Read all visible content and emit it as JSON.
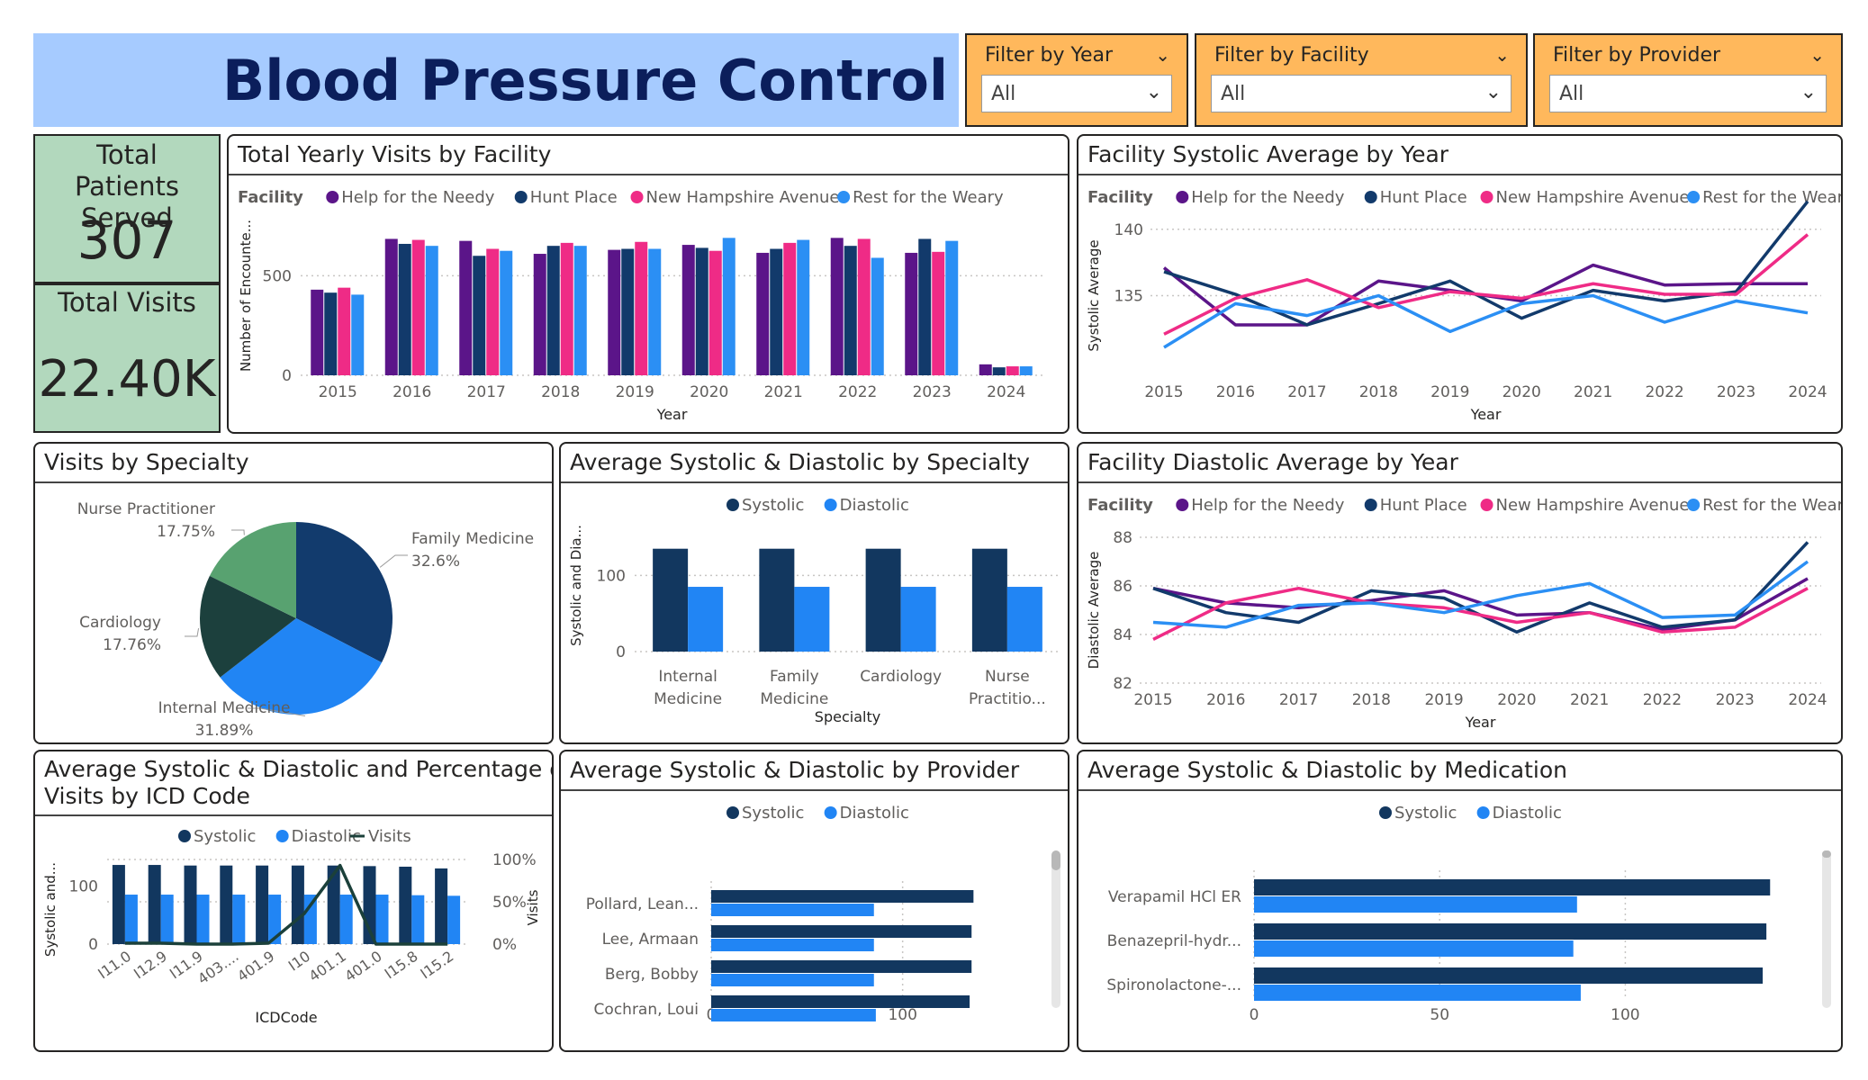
{
  "header": {
    "title": "Blood Pressure Control"
  },
  "filters": [
    {
      "label": "Filter by Year",
      "value": "All"
    },
    {
      "label": "Filter by Facility",
      "value": "All"
    },
    {
      "label": "Filter by Provider",
      "value": "All"
    }
  ],
  "cards": {
    "patients_label": "Total Patients Served",
    "patients_value": "307",
    "visits_label": "Total Visits",
    "visits_value": "22.40K"
  },
  "colors": {
    "help": "#5b1589",
    "hunt": "#123a6b",
    "nha": "#ef2b86",
    "rest": "#2b8ff4",
    "systolic": "#12375f",
    "diastolic": "#2185f4",
    "pie_family": "#123b6d",
    "pie_internal": "#2185f4",
    "pie_cardio": "#1c403d",
    "pie_nurse": "#58a270",
    "card_bg": "#b2d8bd",
    "header_bg": "#a6cbff",
    "slicer_bg": "#ffb85c"
  },
  "panels": {
    "visits_facility": {
      "title": "Total Yearly Visits by Facility",
      "legend_title": "Facility",
      "ylabel": "Number of Encounte...",
      "xlabel": "Year"
    },
    "sys_year": {
      "title": "Facility Systolic Average by Year",
      "legend_title": "Facility",
      "ylabel": "Systolic Average",
      "xlabel": "Year"
    },
    "specialty_pie": {
      "title": "Visits by Specialty"
    },
    "specialty_bars": {
      "title": "Average Systolic & Diastolic by Specialty",
      "ylabel": "Systolic and Dia...",
      "xlabel": "Specialty"
    },
    "dia_year": {
      "title": "Facility Diastolic Average by Year",
      "legend_title": "Facility",
      "ylabel": "Diastolic Average",
      "xlabel": "Year"
    },
    "icd": {
      "title_line1": "Average Systolic & Diastolic and Percentage of",
      "title_line2": "Visits by ICD Code",
      "ylabel": "Systolic and...",
      "y2label": "Visits",
      "xlabel": "ICDCode"
    },
    "provider": {
      "title": "Average Systolic & Diastolic by Provider"
    },
    "medication": {
      "title": "Average Systolic & Diastolic by Medication"
    }
  },
  "chart_data": [
    {
      "id": "visits_facility",
      "type": "bar",
      "categories": [
        "2015",
        "2016",
        "2017",
        "2018",
        "2019",
        "2020",
        "2021",
        "2022",
        "2023",
        "2024"
      ],
      "series": [
        {
          "name": "Help for the Needy",
          "values": [
            430,
            685,
            675,
            610,
            630,
            655,
            615,
            690,
            615,
            55
          ]
        },
        {
          "name": "Hunt Place",
          "values": [
            415,
            660,
            600,
            650,
            635,
            640,
            635,
            650,
            685,
            40
          ]
        },
        {
          "name": "New Hampshire Avenue",
          "values": [
            440,
            680,
            635,
            665,
            670,
            625,
            665,
            685,
            620,
            45
          ]
        },
        {
          "name": "Rest for the Weary",
          "values": [
            405,
            650,
            625,
            650,
            635,
            690,
            680,
            590,
            675,
            45
          ]
        }
      ],
      "ylim": [
        0,
        800
      ],
      "yticks": [
        "0",
        "500"
      ],
      "legend_position": "top-left"
    },
    {
      "id": "sys_year",
      "type": "line",
      "x": [
        "2015",
        "2016",
        "2017",
        "2018",
        "2019",
        "2020",
        "2021",
        "2022",
        "2023",
        "2024"
      ],
      "series": [
        {
          "name": "Help for the Needy",
          "values": [
            137.1,
            132.8,
            132.8,
            136.1,
            135.4,
            134.6,
            137.3,
            135.8,
            135.9,
            135.9
          ]
        },
        {
          "name": "Hunt Place",
          "values": [
            136.8,
            135.1,
            132.8,
            134.4,
            136.1,
            133.3,
            135.4,
            134.6,
            135.3,
            142.1
          ]
        },
        {
          "name": "New Hampshire Avenue",
          "values": [
            132.1,
            134.8,
            136.2,
            134.1,
            135.3,
            134.8,
            135.9,
            135.1,
            135.1,
            139.6
          ]
        },
        {
          "name": "Rest for the Weary",
          "values": [
            131.1,
            134.4,
            133.5,
            135.0,
            132.3,
            134.4,
            135.0,
            133.0,
            134.6,
            133.7
          ]
        }
      ],
      "ylim": [
        129,
        141
      ],
      "yticks": [
        "135",
        "140"
      ]
    },
    {
      "id": "specialty_pie",
      "type": "pie",
      "labels": [
        "Family Medicine",
        "Internal Medicine",
        "Cardiology",
        "Nurse Practitioner"
      ],
      "values": [
        32.6,
        31.89,
        17.76,
        17.75
      ],
      "display": [
        "32.6%",
        "31.89%",
        "17.76%",
        "17.75%"
      ]
    },
    {
      "id": "specialty_bars",
      "type": "bar",
      "categories": [
        "Internal Medicine",
        "Family Medicine",
        "Cardiology",
        "Nurse Practitio..."
      ],
      "series": [
        {
          "name": "Systolic",
          "values": [
            135,
            135,
            135,
            135
          ]
        },
        {
          "name": "Diastolic",
          "values": [
            85,
            85,
            85,
            85
          ]
        }
      ],
      "ylim": [
        0,
        150
      ],
      "yticks": [
        "0",
        "100"
      ]
    },
    {
      "id": "dia_year",
      "type": "line",
      "x": [
        "2015",
        "2016",
        "2017",
        "2018",
        "2019",
        "2020",
        "2021",
        "2022",
        "2023",
        "2024"
      ],
      "series": [
        {
          "name": "Help for the Needy",
          "values": [
            85.9,
            85.3,
            85.1,
            85.4,
            85.8,
            84.8,
            84.9,
            84.2,
            84.6,
            86.3
          ]
        },
        {
          "name": "Hunt Place",
          "values": [
            85.9,
            84.9,
            84.5,
            85.8,
            85.5,
            84.1,
            85.3,
            84.3,
            84.6,
            87.8
          ]
        },
        {
          "name": "New Hampshire Avenue",
          "values": [
            83.8,
            85.3,
            85.9,
            85.3,
            85.1,
            84.5,
            84.9,
            84.1,
            84.3,
            85.9
          ]
        },
        {
          "name": "Rest for the Weary",
          "values": [
            84.5,
            84.3,
            85.2,
            85.3,
            84.9,
            85.6,
            86.1,
            84.7,
            84.8,
            87.0
          ]
        }
      ],
      "ylim": [
        82,
        88
      ],
      "yticks": [
        "82",
        "84",
        "86",
        "88"
      ]
    },
    {
      "id": "icd",
      "type": "bar",
      "categories": [
        "I11.0",
        "I12.9",
        "I11.9",
        "403....",
        "401.9",
        "I10",
        "401.1",
        "401.0",
        "I15.8",
        "I15.2"
      ],
      "series": [
        {
          "name": "Systolic",
          "values": [
            136,
            136,
            135,
            135,
            135,
            135,
            135,
            134,
            133,
            130
          ]
        },
        {
          "name": "Diastolic",
          "values": [
            85,
            85,
            85,
            85,
            85,
            85,
            85,
            85,
            84,
            83
          ]
        },
        {
          "name": "Visits",
          "values": [
            0.01,
            0.01,
            0.0,
            0.0,
            0.01,
            0.36,
            0.93,
            0.0,
            0.0,
            0.0
          ],
          "axis": "right",
          "type": "line"
        }
      ],
      "ylim": [
        0,
        150
      ],
      "yticks": [
        "0",
        "100"
      ],
      "y2ticks": [
        "0%",
        "50%",
        "100%"
      ]
    },
    {
      "id": "provider",
      "type": "bar",
      "orientation": "horizontal",
      "categories": [
        "Pollard, Lean...",
        "Lee, Armaan",
        "Berg, Bobby",
        "Cochran, Loui"
      ],
      "series": [
        {
          "name": "Systolic",
          "values": [
            137,
            136,
            136,
            135
          ]
        },
        {
          "name": "Diastolic",
          "values": [
            85,
            85,
            85,
            86
          ]
        }
      ],
      "xlim": [
        0,
        150
      ],
      "xticks": [
        "0",
        "100"
      ]
    },
    {
      "id": "medication",
      "type": "bar",
      "orientation": "horizontal",
      "categories": [
        "Verapamil HCl ER",
        "Benazepril-hydr...",
        "Spironolactone-..."
      ],
      "series": [
        {
          "name": "Systolic",
          "values": [
            139,
            138,
            137
          ]
        },
        {
          "name": "Diastolic",
          "values": [
            87,
            86,
            88
          ]
        }
      ],
      "xlim": [
        0,
        145
      ],
      "xticks": [
        "0",
        "50",
        "100"
      ]
    }
  ]
}
